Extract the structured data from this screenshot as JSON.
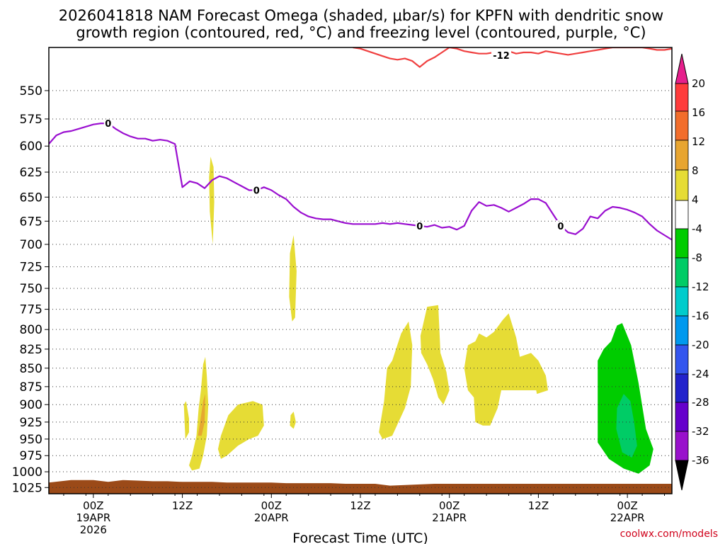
{
  "title_line1": "2026041818 NAM Forecast Omega (shaded, μbar/s) for KPFN with dendritic snow",
  "title_line2": "growth region (contoured, red, °C) and freezing level (contoured, purple, °C)",
  "xlabel": "Forecast Time (UTC)",
  "credit": "coolwx.com/models",
  "chart_data": {
    "type": "heatmap",
    "x_ticks": [
      {
        "t": 6,
        "lines": [
          "00Z",
          "19APR",
          "2026"
        ]
      },
      {
        "t": 18,
        "lines": [
          "12Z"
        ]
      },
      {
        "t": 30,
        "lines": [
          "00Z",
          "20APR"
        ]
      },
      {
        "t": 42,
        "lines": [
          "12Z"
        ]
      },
      {
        "t": 54,
        "lines": [
          "00Z",
          "21APR"
        ]
      },
      {
        "t": 66,
        "lines": [
          "12Z"
        ]
      },
      {
        "t": 78,
        "lines": [
          "00Z",
          "22APR"
        ]
      }
    ],
    "xlim": [
      0,
      84
    ],
    "y_ticks": [
      550,
      575,
      600,
      625,
      650,
      675,
      700,
      725,
      750,
      775,
      800,
      825,
      850,
      875,
      900,
      925,
      950,
      975,
      1000,
      1025
    ],
    "ylim_hPa": [
      514,
      1035
    ],
    "y_scale": "log-pressure",
    "grid": true,
    "colorbar": {
      "labels": [
        "20",
        "16",
        "12",
        "8",
        "4",
        "-4",
        "-8",
        "-12",
        "-16",
        "-20",
        "-24",
        "-28",
        "-32",
        "-36"
      ],
      "colors": [
        "#ff3b3b",
        "#f26d2b",
        "#e8801f",
        "#e6a830",
        "#e6dc35",
        "#ffffff",
        "#00cc00",
        "#00cc66",
        "#00cccc",
        "#0099ee",
        "#3355ee",
        "#2222cc",
        "#6600cc",
        "#9911cc",
        "#aaaaaa"
      ],
      "top_arrow_color": "#e61f8c",
      "bottom_arrow_color": "#000000"
    },
    "freezing_level": {
      "label": "0",
      "color": "#9a0fd0",
      "t": [
        0,
        1,
        2,
        3,
        4,
        5,
        6,
        7,
        8,
        9,
        10,
        11,
        12,
        13,
        14,
        15,
        16,
        17,
        18,
        19,
        20,
        21,
        22,
        23,
        24,
        25,
        26,
        27,
        28,
        29,
        30,
        31,
        32,
        33,
        34,
        35,
        36,
        37,
        38,
        39,
        40,
        41,
        42,
        43,
        44,
        45,
        46,
        47,
        48,
        49,
        50,
        51,
        52,
        53,
        54,
        55,
        56,
        57,
        58,
        59,
        60,
        61,
        62,
        63,
        64,
        65,
        66,
        67,
        68,
        69,
        70,
        71,
        72,
        73,
        74,
        75,
        76,
        77,
        78,
        79,
        80,
        81,
        82,
        83,
        84
      ],
      "p": [
        598,
        590,
        587,
        586,
        584,
        582,
        580,
        579,
        579,
        584,
        588,
        591,
        593,
        593,
        595,
        594,
        595,
        598,
        640,
        634,
        636,
        641,
        633,
        629,
        631,
        635,
        639,
        643,
        643,
        640,
        643,
        648,
        652,
        660,
        666,
        670,
        672,
        673,
        673,
        675,
        677,
        678,
        678,
        678,
        678,
        677,
        678,
        677,
        678,
        679,
        680,
        681,
        679,
        682,
        681,
        684,
        680,
        664,
        655,
        659,
        658,
        661,
        665,
        661,
        657,
        652,
        652,
        656,
        668,
        680,
        687,
        689,
        683,
        670,
        672,
        664,
        660,
        661,
        663,
        666,
        670,
        678,
        685,
        690,
        695
      ]
    },
    "dgz_contour": {
      "label": "-12",
      "color": "#f04040",
      "t": [
        41,
        42,
        43,
        44,
        45,
        46,
        47,
        48,
        49,
        50,
        51,
        52,
        53,
        54,
        55,
        56,
        57,
        58,
        59,
        60,
        61,
        62,
        63,
        64,
        65,
        66,
        67,
        68,
        69,
        70,
        71,
        72,
        73,
        74,
        75,
        76,
        77,
        78,
        79,
        80,
        81,
        82,
        83,
        84
      ],
      "p": [
        514,
        515,
        517,
        519,
        521,
        523,
        524,
        523,
        525,
        530,
        525,
        522,
        518,
        514,
        515,
        517,
        518,
        519,
        519,
        518,
        518,
        517,
        519,
        518,
        518,
        519,
        517,
        518,
        519,
        520,
        519,
        518,
        517,
        516,
        515,
        514,
        514,
        514,
        514,
        514,
        515,
        516,
        516,
        515
      ]
    },
    "omega_regions": [
      {
        "value": 5,
        "poly": [
          [
            18.9,
            990
          ],
          [
            19.3,
            975
          ],
          [
            19.9,
            945
          ],
          [
            20.2,
            905
          ],
          [
            20.5,
            880
          ],
          [
            20.8,
            845
          ],
          [
            21.1,
            835
          ],
          [
            21.3,
            860
          ],
          [
            21.5,
            900
          ],
          [
            21.3,
            945
          ],
          [
            20.8,
            975
          ],
          [
            20.3,
            995
          ],
          [
            19.3,
            998
          ]
        ]
      },
      {
        "value": 5,
        "poly": [
          [
            18.2,
            900
          ],
          [
            18.5,
            895
          ],
          [
            18.9,
            920
          ],
          [
            18.9,
            940
          ],
          [
            18.4,
            950
          ],
          [
            18.3,
            925
          ]
        ]
      },
      {
        "value": 9,
        "poly": [
          [
            20.1,
            945
          ],
          [
            20.4,
            925
          ],
          [
            20.8,
            895
          ],
          [
            21.1,
            885
          ],
          [
            21.0,
            925
          ],
          [
            20.6,
            945
          ]
        ]
      },
      {
        "value": 5,
        "poly": [
          [
            22.8,
            965
          ],
          [
            23.2,
            945
          ],
          [
            24.2,
            915
          ],
          [
            25.5,
            900
          ],
          [
            27.5,
            895
          ],
          [
            28.8,
            900
          ],
          [
            29.0,
            930
          ],
          [
            28.2,
            945
          ],
          [
            27.0,
            950
          ],
          [
            25.5,
            960
          ],
          [
            24.0,
            975
          ],
          [
            23.2,
            980
          ]
        ]
      },
      {
        "value": 5,
        "poly": [
          [
            21.8,
            610
          ],
          [
            22.2,
            620
          ],
          [
            22.3,
            655
          ],
          [
            22.1,
            700
          ],
          [
            21.7,
            665
          ],
          [
            21.6,
            630
          ]
        ]
      },
      {
        "value": 5,
        "poly": [
          [
            32.5,
            710
          ],
          [
            33.0,
            690
          ],
          [
            33.4,
            730
          ],
          [
            33.2,
            785
          ],
          [
            32.8,
            790
          ],
          [
            32.4,
            760
          ]
        ]
      },
      {
        "value": 5,
        "poly": [
          [
            32.6,
            915
          ],
          [
            33.0,
            910
          ],
          [
            33.3,
            925
          ],
          [
            33.0,
            935
          ],
          [
            32.5,
            930
          ]
        ]
      },
      {
        "value": 5,
        "poly": [
          [
            44.5,
            940
          ],
          [
            45.2,
            895
          ],
          [
            45.6,
            850
          ],
          [
            46.3,
            840
          ],
          [
            47.5,
            805
          ],
          [
            48.5,
            790
          ],
          [
            49.0,
            820
          ],
          [
            48.8,
            875
          ],
          [
            48.0,
            905
          ],
          [
            46.3,
            945
          ],
          [
            45.0,
            950
          ]
        ]
      },
      {
        "value": 5,
        "poly": [
          [
            50.1,
            808
          ],
          [
            51.0,
            772
          ],
          [
            52.5,
            770
          ],
          [
            52.8,
            830
          ],
          [
            53.6,
            855
          ],
          [
            54.0,
            880
          ],
          [
            53.2,
            900
          ],
          [
            52.5,
            890
          ],
          [
            51.8,
            865
          ],
          [
            51.0,
            845
          ],
          [
            50.2,
            830
          ]
        ]
      },
      {
        "value": 5,
        "poly": [
          [
            56.0,
            850
          ],
          [
            56.5,
            820
          ],
          [
            57.5,
            815
          ],
          [
            58.0,
            805
          ],
          [
            59.0,
            810
          ],
          [
            60.0,
            803
          ],
          [
            61.2,
            788
          ],
          [
            62.0,
            780
          ],
          [
            63.0,
            810
          ],
          [
            63.5,
            835
          ],
          [
            65.0,
            830
          ],
          [
            66.0,
            840
          ],
          [
            67.0,
            860
          ],
          [
            67.3,
            880
          ],
          [
            65.8,
            885
          ],
          [
            65.7,
            880
          ],
          [
            63.0,
            880
          ],
          [
            61.0,
            880
          ],
          [
            60.5,
            905
          ],
          [
            59.5,
            930
          ],
          [
            58.5,
            930
          ],
          [
            57.5,
            925
          ],
          [
            57.3,
            890
          ],
          [
            56.5,
            880
          ]
        ]
      },
      {
        "value": -5,
        "poly": [
          [
            74.0,
            840
          ],
          [
            74.8,
            825
          ],
          [
            75.8,
            815
          ],
          [
            76.6,
            795
          ],
          [
            77.3,
            792
          ],
          [
            78.5,
            820
          ],
          [
            79.5,
            870
          ],
          [
            80.5,
            935
          ],
          [
            81.5,
            965
          ],
          [
            81.0,
            990
          ],
          [
            79.5,
            1003
          ],
          [
            77.5,
            995
          ],
          [
            75.5,
            980
          ],
          [
            74.0,
            955
          ]
        ]
      },
      {
        "value": -10,
        "poly": [
          [
            76.5,
            935
          ],
          [
            76.6,
            905
          ],
          [
            77.5,
            885
          ],
          [
            78.4,
            895
          ],
          [
            78.9,
            925
          ],
          [
            79.3,
            960
          ],
          [
            78.6,
            978
          ],
          [
            77.3,
            970
          ]
        ]
      }
    ],
    "terrain": {
      "color": "#9b4a18",
      "top_t": [
        0,
        3,
        6,
        8,
        10,
        12,
        14,
        16,
        18,
        20,
        22,
        24,
        26,
        28,
        30,
        32,
        34,
        36,
        38,
        40,
        42,
        44,
        46,
        48,
        50,
        52,
        54,
        56,
        58,
        60,
        62,
        64,
        66,
        68,
        70,
        72,
        74,
        76,
        78,
        80,
        82,
        84
      ],
      "top_p": [
        1017,
        1013,
        1013,
        1016,
        1013,
        1014,
        1015,
        1015,
        1016,
        1016,
        1016,
        1017,
        1017,
        1017,
        1017,
        1018,
        1018,
        1018,
        1018,
        1019,
        1019,
        1019,
        1022,
        1021,
        1020,
        1019,
        1019,
        1019,
        1019,
        1019,
        1019,
        1019,
        1019,
        1019,
        1019,
        1019,
        1019,
        1019,
        1019,
        1019,
        1019,
        1019
      ]
    }
  }
}
